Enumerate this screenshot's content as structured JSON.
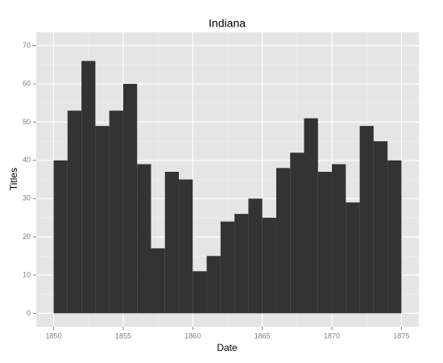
{
  "chart_data": {
    "type": "histogram",
    "title": "Indiana",
    "x_label": "Date",
    "y_label": "Titles",
    "bins": [
      1850,
      1851,
      1852,
      1853,
      1854,
      1855,
      1856,
      1857,
      1858,
      1859,
      1860,
      1861,
      1862,
      1863,
      1864,
      1865,
      1866,
      1867,
      1868,
      1869,
      1870,
      1871,
      1872,
      1873,
      1874,
      1875
    ],
    "values": [
      40,
      53,
      66,
      49,
      53,
      60,
      39,
      17,
      37,
      35,
      11,
      15,
      24,
      26,
      30,
      25,
      38,
      42,
      51,
      37,
      39,
      29,
      49,
      45,
      40
    ],
    "color": "#333333",
    "xlim": [
      1848.75,
      1876.25
    ],
    "xticks": [
      1850,
      1855,
      1860,
      1865,
      1870,
      1875
    ],
    "ylim": [
      -3.5,
      73.5
    ],
    "yticks": [
      0,
      10,
      20,
      30,
      40,
      50,
      60,
      70
    ],
    "grid": true
  }
}
